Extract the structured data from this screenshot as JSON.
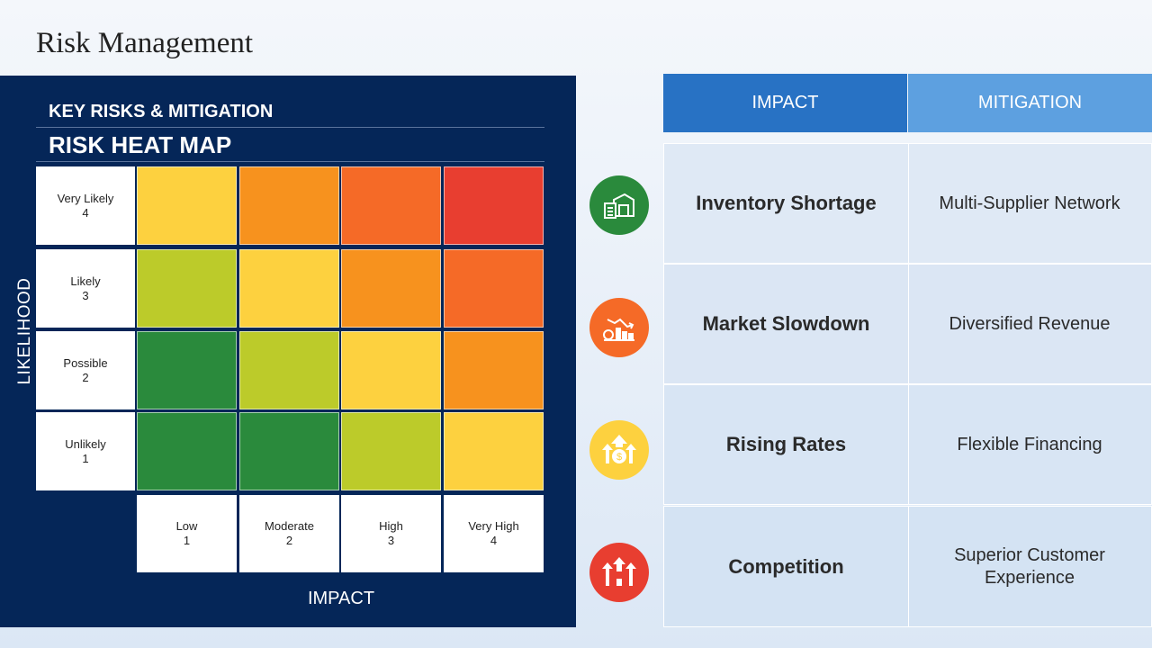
{
  "page": {
    "title": "Risk Management"
  },
  "heatmap": {
    "subtitle": "KEY RISKS & MITIGATION",
    "title": "RISK HEAT MAP",
    "y_axis_label": "LIKELIHOOD",
    "x_axis_label": "IMPACT",
    "likelihood_levels": [
      {
        "name": "Very Likely",
        "value": "4"
      },
      {
        "name": "Likely",
        "value": "3"
      },
      {
        "name": "Possible",
        "value": "2"
      },
      {
        "name": "Unlikely",
        "value": "1"
      }
    ],
    "impact_levels": [
      {
        "name": "Low",
        "value": "1"
      },
      {
        "name": "Moderate",
        "value": "2"
      },
      {
        "name": "High",
        "value": "3"
      },
      {
        "name": "Very High",
        "value": "4"
      }
    ],
    "grid_colors": [
      [
        "#fdd13f",
        "#f7921e",
        "#f56a27",
        "#e83e30"
      ],
      [
        "#bccb2a",
        "#fdd13f",
        "#f7921e",
        "#f56a27"
      ],
      [
        "#2a8a3c",
        "#bccb2a",
        "#fdd13f",
        "#f7921e"
      ],
      [
        "#2a8a3c",
        "#2a8a3c",
        "#bccb2a",
        "#fdd13f"
      ]
    ]
  },
  "table": {
    "header_impact": "IMPACT",
    "header_mitigation": "MITIGATION",
    "rows": [
      {
        "impact": "Inventory Shortage",
        "mitigation": "Multi-Supplier Network",
        "icon": "inventory-icon",
        "color": "#2a8a3c"
      },
      {
        "impact": "Market Slowdown",
        "mitigation": "Diversified Revenue",
        "icon": "declining-market-icon",
        "color": "#f56a27"
      },
      {
        "impact": "Rising Rates",
        "mitigation": "Flexible Financing",
        "icon": "rising-rates-icon",
        "color": "#fdd13f"
      },
      {
        "impact": "Competition",
        "mitigation": "Superior Customer Experience",
        "icon": "competition-icon",
        "color": "#e83e30"
      }
    ]
  }
}
